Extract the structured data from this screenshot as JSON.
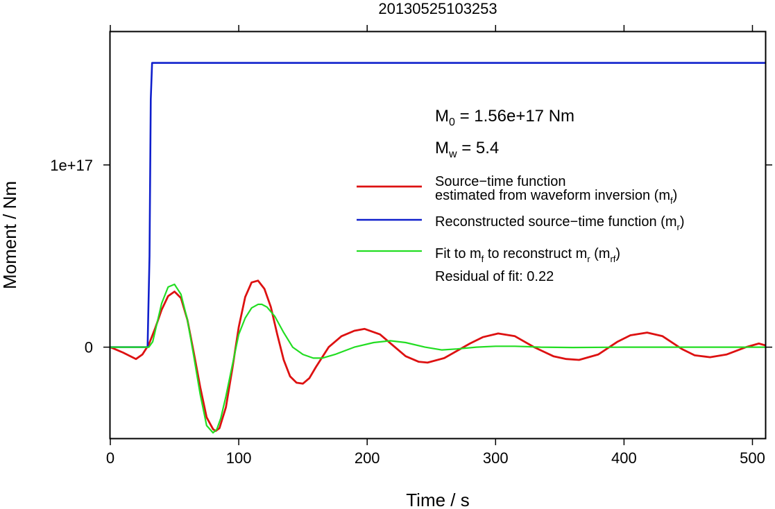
{
  "chart_data": {
    "type": "line",
    "title": "20130525103253",
    "xlabel": "Time / s",
    "ylabel": "Moment / Nm",
    "xlim": [
      0,
      510
    ],
    "ylim": [
      -5e+16,
      1.73e+17
    ],
    "x_ticks": [
      0,
      100,
      200,
      300,
      400,
      500
    ],
    "x_tick_labels": [
      "0",
      "100",
      "200",
      "300",
      "400",
      "500"
    ],
    "y_ticks": [
      0,
      1e+17
    ],
    "y_tick_labels": [
      "0",
      "1e+17"
    ],
    "grid": false,
    "legend_position": "top-right",
    "annotations": {
      "m0": {
        "main": "M",
        "sub": "0",
        "rest": " = 1.56e+17 Nm"
      },
      "mw": {
        "main": "M",
        "sub": "w",
        "rest": " = 5.4"
      },
      "residual": "Residual of fit: 0.22"
    },
    "series": [
      {
        "name": "Source−time function estimated from waveform inversion (mf)",
        "legend_lines": [
          {
            "text": "Source−time function"
          },
          {
            "text": "estimated from waveform inversion (m",
            "sub": "f",
            "after": ")"
          }
        ],
        "color": "#dd1111",
        "stroke_width": 2.8,
        "x": [
          0,
          10,
          20,
          25,
          30,
          35,
          40,
          45,
          50,
          55,
          60,
          65,
          70,
          75,
          80,
          82,
          85,
          90,
          95,
          100,
          105,
          110,
          115,
          120,
          125,
          130,
          135,
          140,
          145,
          150,
          155,
          160,
          170,
          180,
          190,
          198,
          210,
          220,
          230,
          240,
          247,
          260,
          270,
          280,
          290,
          302,
          315,
          330,
          345,
          355,
          365,
          380,
          395,
          405,
          418,
          430,
          445,
          455,
          467,
          480,
          495,
          505,
          510
        ],
        "y": [
          0,
          -3000000000000000.0,
          -6500000000000000.0,
          -4000000000000000.0,
          1500000000000000.0,
          1.05e+16,
          2.05e+16,
          2.8e+16,
          3.05e+16,
          2.7e+16,
          1.5e+16,
          -3000000000000000.0,
          -2.2e+16,
          -3.85e+16,
          -4.5e+16,
          -4.6e+16,
          -4.45e+16,
          -3.3e+16,
          -1.2e+16,
          1.1e+16,
          2.75e+16,
          3.55e+16,
          3.65e+16,
          3.2e+16,
          2.2e+16,
          7000000000000000.0,
          -7000000000000000.0,
          -1.6e+16,
          -1.95e+16,
          -2e+16,
          -1.7e+16,
          -1.1e+16,
          0,
          6000000000000000.0,
          9000000000000000.0,
          1e+16,
          7000000000000000.0,
          1000000000000000.0,
          -5000000000000000.0,
          -8000000000000000.0,
          -8500000000000000.0,
          -6000000000000000.0,
          -2000000000000000.0,
          2000000000000000.0,
          5500000000000000.0,
          7500000000000000.0,
          6000000000000000.0,
          0,
          -5000000000000000.0,
          -6500000000000000.0,
          -7000000000000000.0,
          -4000000000000000.0,
          3000000000000000.0,
          6500000000000000.0,
          8000000000000000.0,
          6000000000000000.0,
          -1000000000000000.0,
          -4500000000000000.0,
          -5500000000000000.0,
          -4000000000000000.0,
          0,
          2000000000000000.0,
          1000000000000000.0
        ]
      },
      {
        "name": "Reconstructed source−time function (mr)",
        "legend_lines": [
          {
            "text": "Reconstructed source−time function (m",
            "sub": "r",
            "after": ")"
          }
        ],
        "color": "#0f1fcc",
        "stroke_width": 2.6,
        "x": [
          0,
          29,
          30.5,
          31.5,
          32.5,
          510
        ],
        "y": [
          0,
          0,
          5e+16,
          1.36e+17,
          1.56e+17,
          1.56e+17
        ]
      },
      {
        "name": "Fit to mf to reconstruct mr (mrf)",
        "legend_lines": [
          {
            "text": "Fit to m",
            "sub": "f",
            "after": " to reconstruct m",
            "sub2": "r",
            "after2": " (m",
            "sub3": "rf",
            "after3": ")"
          }
        ],
        "color": "#22dd22",
        "stroke_width": 2.2,
        "x": [
          0,
          28,
          30,
          33,
          36,
          40,
          45,
          50,
          55,
          60,
          65,
          70,
          75,
          80,
          83,
          86,
          90,
          95,
          100,
          105,
          110,
          115,
          118,
          122,
          128,
          135,
          142,
          150,
          158,
          165,
          175,
          190,
          205,
          218,
          230,
          245,
          258,
          270,
          285,
          300,
          315,
          335,
          360,
          400,
          450,
          510
        ],
        "y": [
          0,
          0,
          0,
          3000000000000000.0,
          1.2e+16,
          2.4e+16,
          3.3e+16,
          3.45e+16,
          2.9e+16,
          1.5e+16,
          -5000000000000000.0,
          -2.6e+16,
          -4.3e+16,
          -4.7e+16,
          -4.5e+16,
          -3.9e+16,
          -2.7e+16,
          -1e+16,
          7000000000000000.0,
          1.6e+16,
          2.15e+16,
          2.35e+16,
          2.35e+16,
          2.2e+16,
          1.7e+16,
          8000000000000000.0,
          0,
          -4000000000000000.0,
          -6000000000000000.0,
          -6000000000000000.0,
          -4000000000000000.0,
          0,
          2500000000000000.0,
          3500000000000000.0,
          2500000000000000.0,
          0,
          -1500000000000000.0,
          -1000000000000000.0,
          0,
          500000000000000.0,
          500000000000000.0,
          0,
          -200000000000000.0,
          0,
          0,
          0
        ]
      }
    ]
  }
}
